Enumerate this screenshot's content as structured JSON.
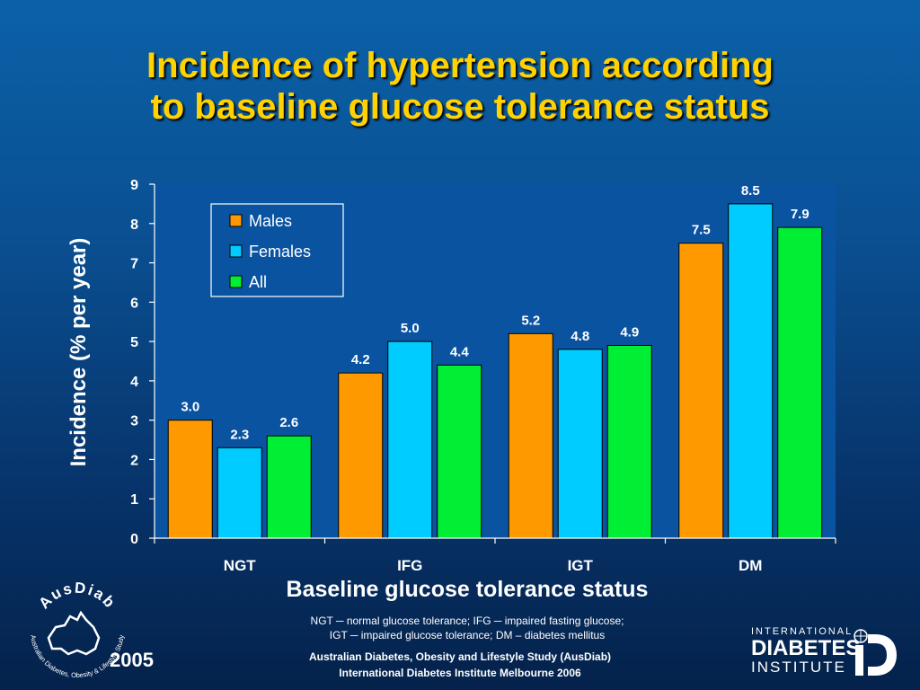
{
  "title": {
    "line1": "Incidence of hypertension according",
    "line2": "to baseline glucose tolerance status"
  },
  "chart_data": {
    "type": "bar",
    "categories": [
      "NGT",
      "IFG",
      "IGT",
      "DM"
    ],
    "series": [
      {
        "name": "Males",
        "values": [
          3.0,
          4.2,
          5.2,
          7.5
        ],
        "color": "#ff9900"
      },
      {
        "name": "Females",
        "values": [
          2.3,
          5.0,
          4.8,
          8.5
        ],
        "color": "#00ccff"
      },
      {
        "name": "All",
        "values": [
          2.6,
          4.4,
          4.9,
          7.9
        ],
        "color": "#00ee33"
      }
    ],
    "data_labels": [
      [
        "3.0",
        "4.2",
        "5.2",
        "7.5"
      ],
      [
        "2.3",
        "5.0",
        "4.8",
        "8.5"
      ],
      [
        "2.6",
        "4.4",
        "4.9",
        "7.9"
      ]
    ],
    "yticks": [
      "0",
      "1",
      "2",
      "3",
      "4",
      "5",
      "6",
      "7",
      "8",
      "9"
    ],
    "ylim": [
      0,
      9
    ],
    "xlabel": "Baseline glucose tolerance status",
    "ylabel": "Incidence (% per year)",
    "legend_position": "top-left",
    "grid": false,
    "plot_background": "#0a53a0"
  },
  "footnote": {
    "line1": "NGT ─ normal glucose tolerance; IFG ─ impaired fasting glucose;",
    "line2": "IGT ─ impaired glucose tolerance; DM – diabetes mellitus"
  },
  "credits": {
    "line1": "Australian Diabetes, Obesity and Lifestyle Study (AusDiab)",
    "line2": "International Diabetes Institute Melbourne 2006"
  },
  "year": "2005",
  "ausdiab_logo": {
    "name": "AusDiab",
    "subtitle": "Australian Diabetes, Obesity & Lifestyle Study"
  },
  "idi_logo": {
    "line1": "INTERNATIONAL",
    "line2": "DIABETES",
    "line3": "INSTITUTE"
  }
}
